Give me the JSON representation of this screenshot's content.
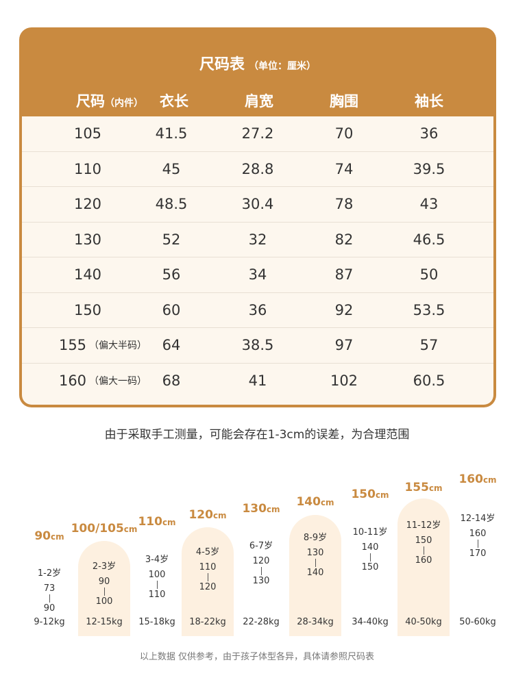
{
  "table": {
    "title": "尺码表",
    "unit": "（单位：厘米）",
    "headers": [
      {
        "label": "尺码",
        "sub": "（内件）"
      },
      {
        "label": "衣长",
        "sub": ""
      },
      {
        "label": "肩宽",
        "sub": ""
      },
      {
        "label": "胸围",
        "sub": ""
      },
      {
        "label": "袖长",
        "sub": ""
      }
    ],
    "rows": [
      {
        "size": "105",
        "note": "",
        "length": "41.5",
        "shoulder": "27.2",
        "chest": "70",
        "sleeve": "36"
      },
      {
        "size": "110",
        "note": "",
        "length": "45",
        "shoulder": "28.8",
        "chest": "74",
        "sleeve": "39.5"
      },
      {
        "size": "120",
        "note": "",
        "length": "48.5",
        "shoulder": "30.4",
        "chest": "78",
        "sleeve": "43"
      },
      {
        "size": "130",
        "note": "",
        "length": "52",
        "shoulder": "32",
        "chest": "82",
        "sleeve": "46.5"
      },
      {
        "size": "140",
        "note": "",
        "length": "56",
        "shoulder": "34",
        "chest": "87",
        "sleeve": "50"
      },
      {
        "size": "150",
        "note": "",
        "length": "60",
        "shoulder": "36",
        "chest": "92",
        "sleeve": "53.5"
      },
      {
        "size": "155",
        "note": "（偏大半码）",
        "length": "64",
        "shoulder": "38.5",
        "chest": "97",
        "sleeve": "57"
      },
      {
        "size": "160",
        "note": "（偏大一码）",
        "length": "68",
        "shoulder": "41",
        "chest": "102",
        "sleeve": "60.5"
      }
    ]
  },
  "disclaimer": "由于采取手工测量，可能会存在1-3cm的误差，为合理范围",
  "guide": [
    {
      "height": "90",
      "unit": "cm",
      "age": "1-2岁",
      "from": "73",
      "to": "90",
      "weight": "9-12kg"
    },
    {
      "height": "100/105",
      "unit": "cm",
      "age": "2-3岁",
      "from": "90",
      "to": "100",
      "weight": "12-15kg"
    },
    {
      "height": "110",
      "unit": "cm",
      "age": "3-4岁",
      "from": "100",
      "to": "110",
      "weight": "15-18kg"
    },
    {
      "height": "120",
      "unit": "cm",
      "age": "4-5岁",
      "from": "110",
      "to": "120",
      "weight": "18-22kg"
    },
    {
      "height": "130",
      "unit": "cm",
      "age": "6-7岁",
      "from": "120",
      "to": "130",
      "weight": "22-28kg"
    },
    {
      "height": "140",
      "unit": "cm",
      "age": "8-9岁",
      "from": "130",
      "to": "140",
      "weight": "28-34kg"
    },
    {
      "height": "150",
      "unit": "cm",
      "age": "10-11岁",
      "from": "140",
      "to": "150",
      "weight": "34-40kg"
    },
    {
      "height": "155",
      "unit": "cm",
      "age": "11-12岁",
      "from": "150",
      "to": "160",
      "weight": "40-50kg"
    },
    {
      "height": "160",
      "unit": "cm",
      "age": "12-14岁",
      "from": "160",
      "to": "170",
      "weight": "50-60kg"
    }
  ],
  "footer": "以上数据 仅供参考，由于孩子体型各异，具体请参照尺码表",
  "colors": {
    "accent": "#c98a40",
    "table_bg": "#fdf7ee",
    "arch_bg": "#fdf0e0"
  }
}
